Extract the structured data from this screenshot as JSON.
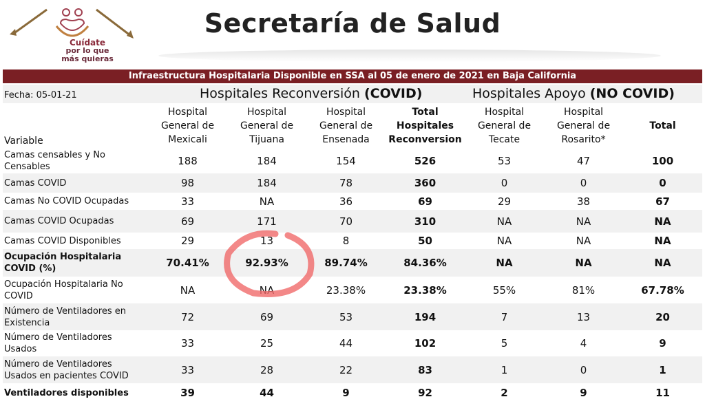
{
  "logo": [
    "Cuídate",
    "por lo que",
    "más quieras"
  ],
  "header": {
    "title": "Secretaría de Salud"
  },
  "table": {
    "banner": "Infraestructura Hospitalaria Disponible en SSA al 05 de enero  de 2021 en Baja California",
    "date": "Fecha: 05-01-21",
    "groups": [
      {
        "name": "Hospitales Reconversión",
        "tag": "(COVID)"
      },
      {
        "name": "Hospitales Apoyo",
        "tag": "(NO COVID)"
      }
    ],
    "columns": [
      "Variable",
      "Hospital General de Mexicali",
      "Hospital General de Tijuana",
      "Hospital General de Ensenada",
      "Total Hospitales Reconversion",
      "Hospital General de Tecate",
      "Hospital General de Rosarito*",
      "Total"
    ],
    "bold_columns": [
      4,
      7
    ],
    "rows": [
      {
        "label": "Camas censables y No Censables",
        "values": [
          188,
          184,
          154,
          526,
          53,
          47,
          100
        ]
      },
      {
        "label": "Camas COVID",
        "values": [
          98,
          184,
          78,
          360,
          0,
          0,
          0
        ]
      },
      {
        "label": "Camas  No COVID Ocupadas",
        "values": [
          33,
          "NA",
          36,
          69,
          29,
          38,
          67
        ]
      },
      {
        "label": "Camas COVID Ocupadas",
        "values": [
          69,
          171,
          70,
          310,
          "NA",
          "NA",
          "NA"
        ]
      },
      {
        "label": "Camas COVID Disponibles",
        "values": [
          29,
          13,
          8,
          50,
          "NA",
          "NA",
          "NA"
        ]
      },
      {
        "label": "Ocupación Hospitalaria COVID (%)",
        "bold": true,
        "values": [
          "70.41%",
          "92.93%",
          "89.74%",
          "84.36%",
          "NA",
          "NA",
          "NA"
        ]
      },
      {
        "label": "Ocupación Hospitalaria No COVID",
        "values": [
          "NA",
          "NA",
          "23.38%",
          "23.38%",
          "55%",
          "81%",
          "67.78%"
        ]
      },
      {
        "label": "Número de Ventiladores en Existencia",
        "values": [
          72,
          69,
          53,
          194,
          7,
          13,
          20
        ]
      },
      {
        "label": "Número de Ventiladores Usados",
        "values": [
          33,
          25,
          44,
          102,
          5,
          4,
          9
        ]
      },
      {
        "label": "Número de Ventiladores Usados en pacientes COVID",
        "values": [
          33,
          28,
          22,
          83,
          1,
          0,
          1
        ]
      },
      {
        "label": "Ventiladores disponibles",
        "bold": true,
        "values": [
          39,
          44,
          9,
          92,
          2,
          9,
          11
        ]
      }
    ]
  }
}
